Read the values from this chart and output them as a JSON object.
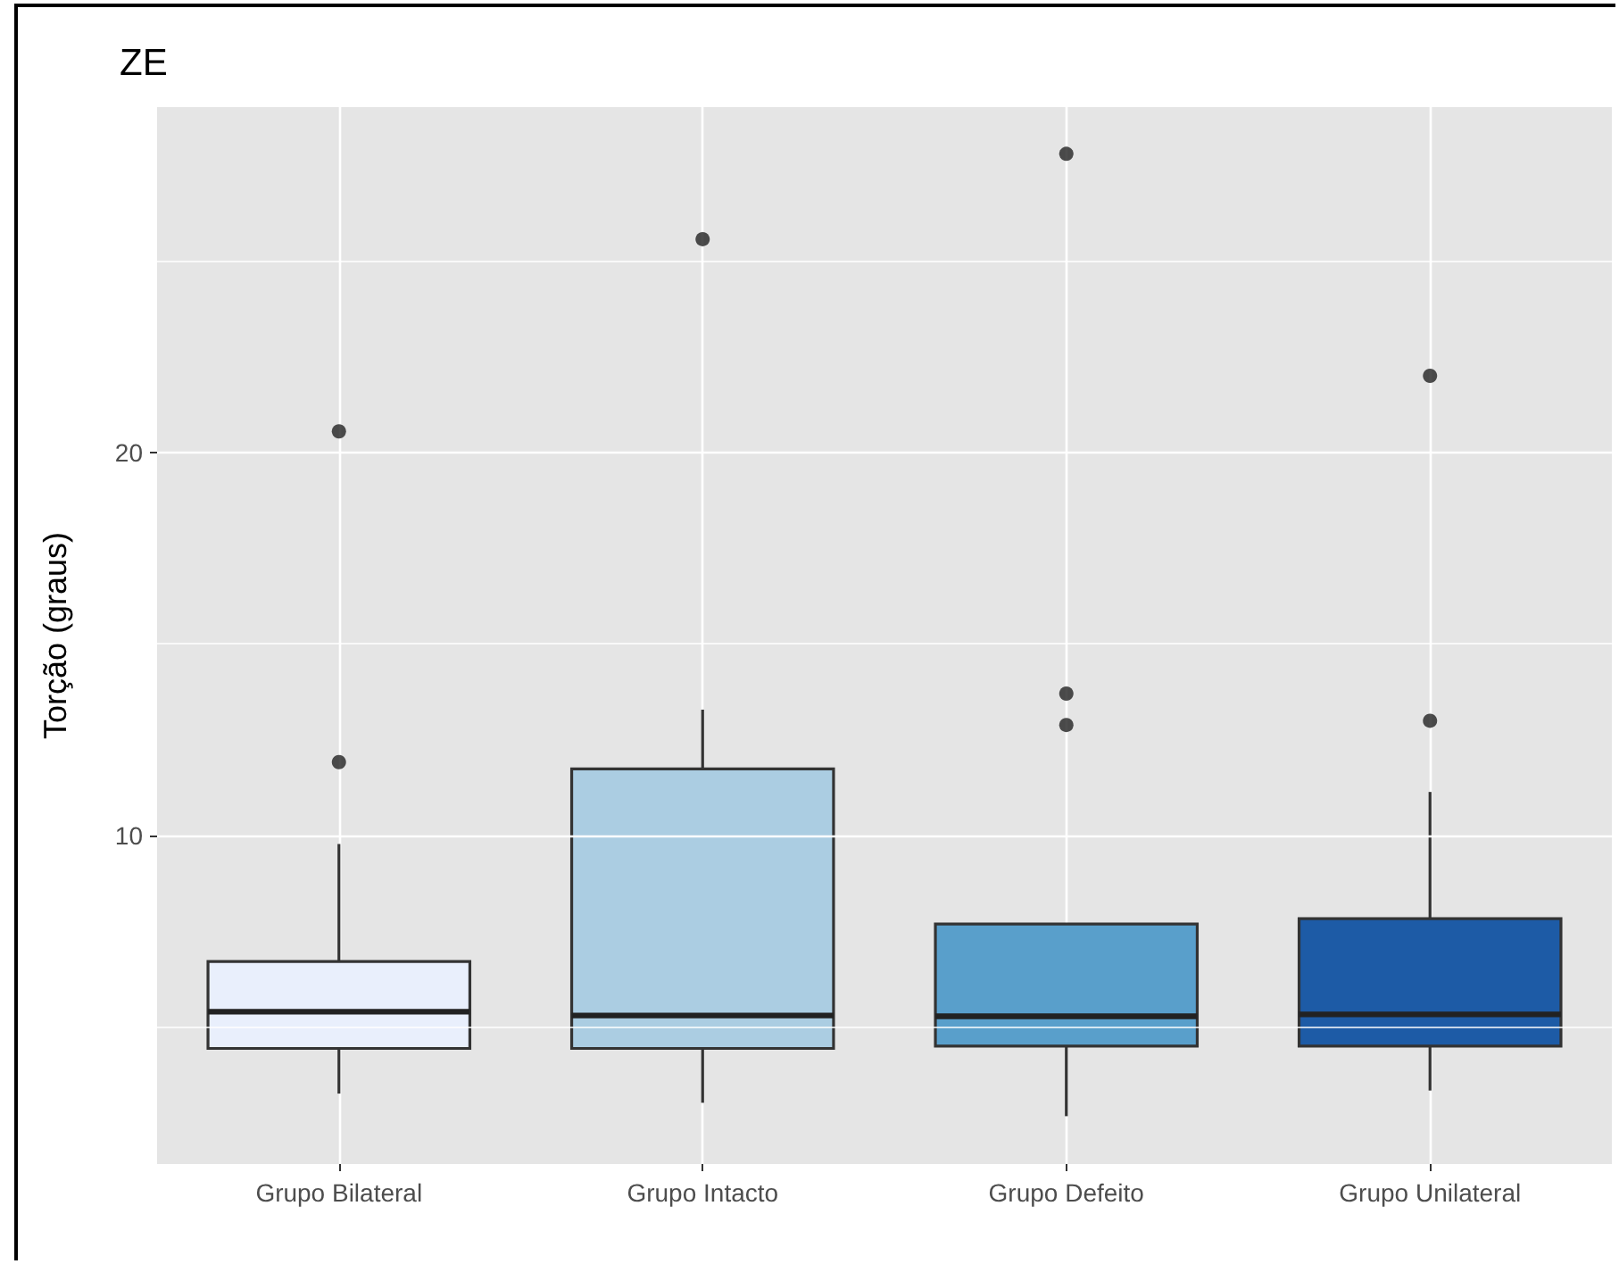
{
  "chart_data": {
    "type": "box",
    "title": "ZE",
    "ylabel": "Torção (graus)",
    "categories": [
      "Grupo Bilateral",
      "Grupo Intacto",
      "Grupo Defeito",
      "Grupo Unilateral"
    ],
    "boxes": [
      {
        "low": 3.25,
        "q1": 4.43,
        "median": 5.39,
        "q3": 6.7,
        "high": 9.77,
        "outliers": [
          11.91,
          20.55
        ]
      },
      {
        "low": 3.01,
        "q1": 4.43,
        "median": 5.29,
        "q3": 11.73,
        "high": 13.28,
        "outliers": [
          25.57
        ]
      },
      {
        "low": 2.66,
        "q1": 4.49,
        "median": 5.27,
        "q3": 7.68,
        "high": 7.68,
        "outliers": [
          12.88,
          13.7,
          27.8
        ]
      },
      {
        "low": 3.33,
        "q1": 4.49,
        "median": 5.32,
        "q3": 7.82,
        "high": 11.13,
        "outliers": [
          12.99,
          22.0
        ]
      }
    ],
    "colors": [
      "#e9effc",
      "#abcde2",
      "#599fcb",
      "#1d5ba6"
    ],
    "ylim": [
      1.41,
      29.02
    ],
    "yticks": [
      {
        "value": 5,
        "label": null
      },
      10,
      {
        "value": 15,
        "label": null
      },
      20,
      {
        "value": 25,
        "label": null
      }
    ],
    "grid": true
  }
}
